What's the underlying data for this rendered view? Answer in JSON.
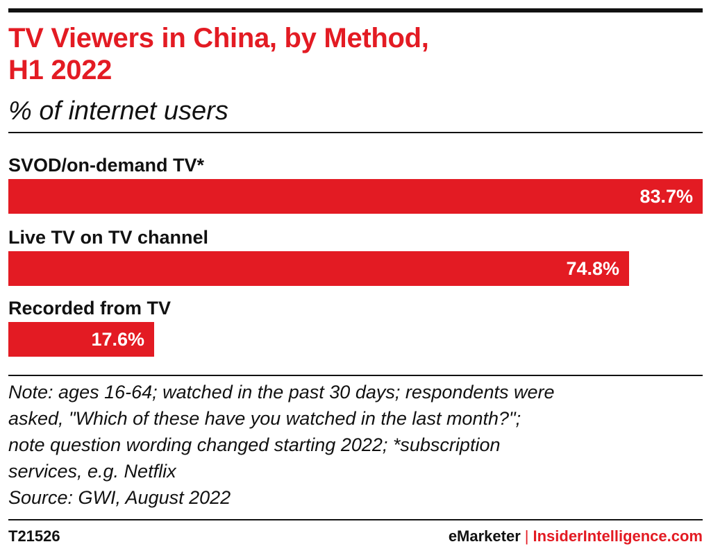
{
  "chart_data": {
    "type": "bar",
    "orientation": "horizontal",
    "title": "TV Viewers in China, by Method, H1 2022",
    "subtitle": "% of internet users",
    "categories": [
      "SVOD/on-demand TV*",
      "Live TV on TV channel",
      "Recorded from TV"
    ],
    "values": [
      83.7,
      74.8,
      17.6
    ],
    "value_labels": [
      "83.7%",
      "74.8%",
      "17.6%"
    ],
    "xlim": [
      0,
      83.7
    ],
    "grid": false,
    "legend": "none",
    "bar_color": "#e31b23"
  },
  "header": {
    "title_line1": "TV Viewers in China, by Method,",
    "title_line2": "H1 2022",
    "subtitle": "% of internet users"
  },
  "notes": {
    "line1": "Note: ages 16-64; watched in the past 30 days; respondents were",
    "line2": "asked, \"Which of these have you watched in the last month?\";",
    "line3": "note question wording changed starting 2022; *subscription",
    "line4": "services, e.g. Netflix",
    "line5": "Source: GWI, August 2022"
  },
  "footer": {
    "chart_id": "T21526",
    "brand_left": "eMarketer",
    "separator": "|",
    "brand_right": "InsiderIntelligence.com"
  },
  "colors": {
    "accent": "#e31b23",
    "text": "#111111"
  }
}
